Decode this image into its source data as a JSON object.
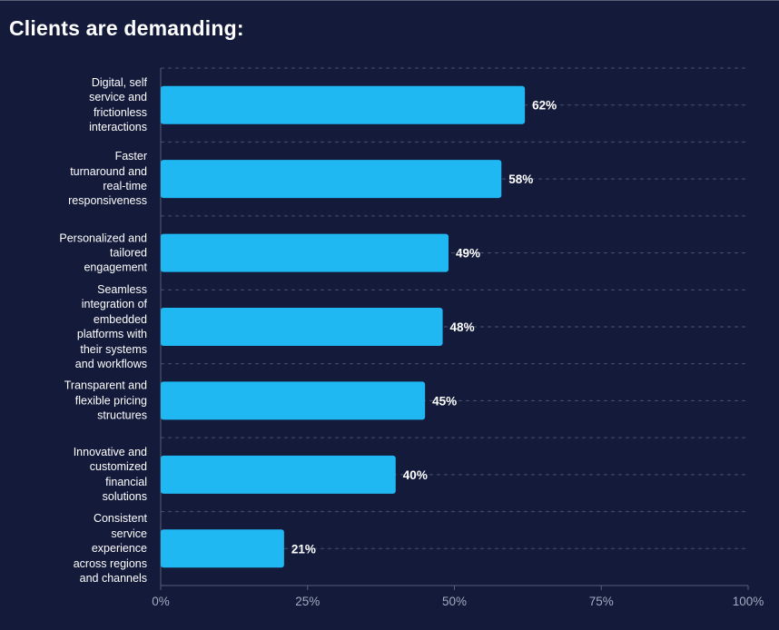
{
  "chart_data": {
    "type": "bar",
    "orientation": "horizontal",
    "title": "Clients are demanding:",
    "categories": [
      "Digital, self service and frictionless interactions",
      "Faster turnaround and real-time responsiveness",
      "Personalized and tailored engagement",
      "Seamless integration of embedded platforms with their systems and workflows",
      "Transparent and flexible pricing structures",
      "Innovative and customized financial solutions",
      "Consistent service experience across regions and channels"
    ],
    "category_lines": [
      [
        "Digital, self",
        "service and",
        "frictionless",
        "interactions"
      ],
      [
        "Faster",
        "turnaround and",
        "real-time",
        "responsiveness"
      ],
      [
        "Personalized and",
        "tailored",
        "engagement"
      ],
      [
        "Seamless",
        "integration of",
        "embedded",
        "platforms with",
        "their systems",
        "and workflows"
      ],
      [
        "Transparent and",
        "flexible pricing",
        "structures"
      ],
      [
        "Innovative and",
        "customized",
        "financial",
        "solutions"
      ],
      [
        "Consistent",
        "service",
        "experience",
        "across regions",
        "and channels"
      ]
    ],
    "values": [
      62,
      58,
      49,
      48,
      45,
      40,
      21
    ],
    "value_labels": [
      "62%",
      "58%",
      "49%",
      "48%",
      "45%",
      "40%",
      "21%"
    ],
    "xlim": [
      0,
      100
    ],
    "xticks": [
      0,
      25,
      50,
      75,
      100
    ],
    "xtick_labels": [
      "0%",
      "25%",
      "50%",
      "75%",
      "100%"
    ],
    "xlabel": "",
    "ylabel": "",
    "grid": true,
    "colors": {
      "background": "#131a3a",
      "bar": "#1fb8f2",
      "text": "#ffffff",
      "tick_text": "#a4aac0",
      "axis": "#5a6078",
      "grid": "#4a5170"
    }
  }
}
